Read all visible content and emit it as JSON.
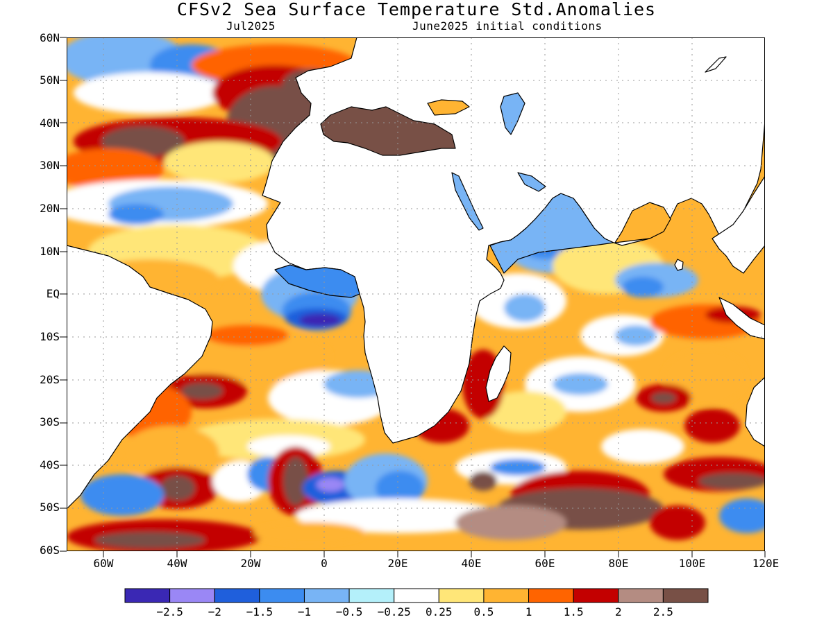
{
  "title": "CFSv2 Sea Surface Temperature Std.Anomalies",
  "valid_month": "Jul2025",
  "initial_conditions": "June2025 initial conditions",
  "lat_labels": [
    "60N",
    "50N",
    "40N",
    "30N",
    "20N",
    "10N",
    "EQ",
    "10S",
    "20S",
    "30S",
    "40S",
    "50S",
    "60S"
  ],
  "lon_labels": [
    "60W",
    "40W",
    "20W",
    "0",
    "20E",
    "40E",
    "60E",
    "80E",
    "100E",
    "120E"
  ],
  "colorbar": {
    "colors": [
      "#3a28b4",
      "#9a87f5",
      "#1f5fdc",
      "#3c8cf0",
      "#78b4f5",
      "#b4f0fa",
      "#ffffff",
      "#ffe678",
      "#ffb432",
      "#ff6400",
      "#c30000",
      "#b48c82",
      "#785046"
    ],
    "labels": [
      "−2.5",
      "−2",
      "−1.5",
      "−1",
      "−0.5",
      "−0.25",
      "0.25",
      "0.5",
      "1",
      "1.5",
      "2",
      "2.5"
    ]
  }
}
